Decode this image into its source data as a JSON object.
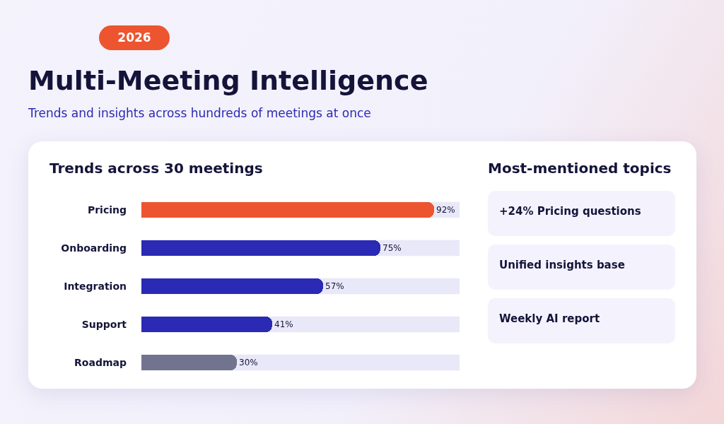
{
  "chart_data": [
    {
      "type": "bar",
      "orientation": "horizontal",
      "title": "Multi-Meeting Intelligence",
      "subtitle": "Trends and insights across hundreds of meetings at once",
      "annotations": [
        "2026",
        "Trends across 30 meetings"
      ],
      "categories": [
        "Pricing",
        "Onboarding",
        "Integration",
        "Support",
        "Roadmap"
      ],
      "values": [
        92,
        75,
        57,
        41,
        30
      ],
      "colors": [
        "#ec5530",
        "#2a2ab4",
        "#2a2ab4",
        "#2a2ab4",
        "#72748f"
      ],
      "value_labels": [
        "92%",
        "75%",
        "57%",
        "41%",
        "30%"
      ],
      "xlim": [
        0,
        100
      ],
      "tick_labels": "y",
      "grid": false,
      "legend": false
    },
    {
      "type": "other",
      "title": "Most-mentioned topics",
      "annotations": [
        "+24% Pricing questions",
        "Unified insights base",
        "Weekly AI report"
      ]
    }
  ]
}
